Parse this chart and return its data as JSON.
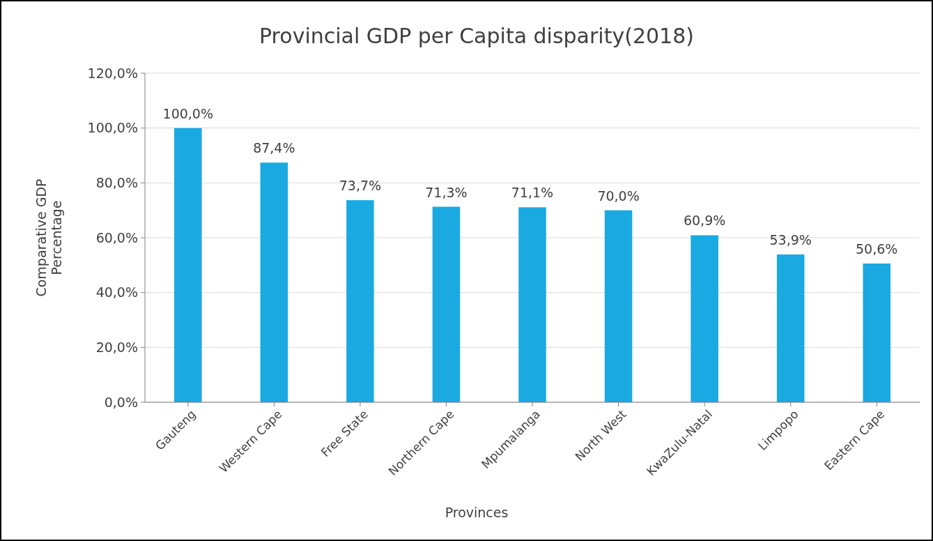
{
  "chart_data": {
    "type": "bar",
    "title": "Provincial GDP per Capita disparity(2018)",
    "xlabel": "Provinces",
    "ylabel": "Comparative GDP Percentage",
    "categories": [
      "Gauteng",
      "Western Cape",
      "Free State",
      "Northern Cape",
      "Mpumalanga",
      "North West",
      "KwaZulu-Natal",
      "Limpopo",
      "Eastern Cape"
    ],
    "values": [
      100.0,
      87.4,
      73.7,
      71.3,
      71.1,
      70.0,
      60.9,
      53.9,
      50.6
    ],
    "value_labels": [
      "100,0%",
      "87,4%",
      "73,7%",
      "71,3%",
      "71,1%",
      "70,0%",
      "60,9%",
      "53,9%",
      "50,6%"
    ],
    "color": "#1ba9e1",
    "ylim": [
      0,
      120
    ],
    "yticks": [
      {
        "value": 0,
        "label": "0,0%"
      },
      {
        "value": 20,
        "label": "20,0%"
      },
      {
        "value": 40,
        "label": "40,0%"
      },
      {
        "value": 60,
        "label": "60,0%"
      },
      {
        "value": 80,
        "label": "80,0%"
      },
      {
        "value": 100,
        "label": "100,0%"
      },
      {
        "value": 120,
        "label": "120,0%"
      }
    ],
    "grid": "y"
  }
}
